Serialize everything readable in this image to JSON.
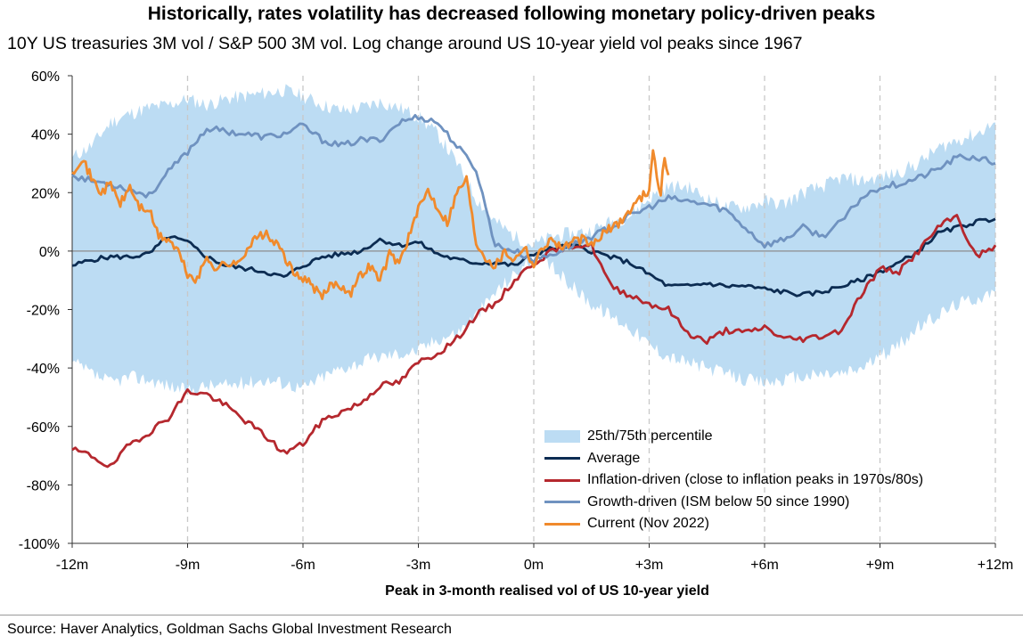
{
  "chart_data": {
    "type": "line",
    "title": "Historically, rates volatility has decreased following monetary policy-driven peaks",
    "subtitle": "10Y US treasuries 3M vol / S&P 500 3M vol. Log change around US 10-year yield vol peaks since 1967",
    "xlabel": "Peak in 3-month realised vol of US 10-year yield",
    "ylabel": "",
    "xlim": [
      -12,
      12
    ],
    "ylim": [
      -100,
      60
    ],
    "x_ticks": [
      -12,
      -9,
      -6,
      -3,
      0,
      3,
      6,
      9,
      12
    ],
    "x_tick_labels": [
      "-12m",
      "-9m",
      "-6m",
      "-3m",
      "0m",
      "+3m",
      "+6m",
      "+9m",
      "+12m"
    ],
    "y_ticks": [
      -100,
      -80,
      -60,
      -40,
      -20,
      0,
      20,
      40,
      60
    ],
    "y_tick_labels": [
      "-100%",
      "-80%",
      "-60%",
      "-40%",
      "-20%",
      "0%",
      "20%",
      "40%",
      "60%"
    ],
    "vertical_gridlines": "dashed at every 3 months",
    "zero_line": true,
    "legend_position": "bottom-right",
    "band": {
      "name": "25th/75th percentile",
      "color": "#bcdcf3",
      "x": [
        -12,
        -11.5,
        -11,
        -10.5,
        -10,
        -9.5,
        -9,
        -8.5,
        -8,
        -7.5,
        -7,
        -6.5,
        -6,
        -5.5,
        -5,
        -4.5,
        -4,
        -3.5,
        -3,
        -2.5,
        -2,
        -1.5,
        -1,
        -0.5,
        0,
        0.5,
        1,
        1.5,
        2,
        2.5,
        3,
        3.5,
        4,
        4.5,
        5,
        5.5,
        6,
        6.5,
        7,
        7.5,
        8,
        8.5,
        9,
        9.5,
        10,
        10.5,
        11,
        11.5,
        12
      ],
      "upper": [
        32,
        36,
        44,
        47,
        49,
        50,
        52,
        50,
        52,
        53,
        54,
        55,
        53,
        50,
        48,
        49,
        51,
        49,
        46,
        40,
        30,
        18,
        10,
        5,
        2,
        5,
        6,
        7,
        10,
        12,
        18,
        22,
        22,
        18,
        15,
        15,
        17,
        16,
        20,
        22,
        25,
        24,
        25,
        27,
        30,
        35,
        38,
        40,
        44
      ],
      "lower": [
        -38,
        -42,
        -45,
        -43,
        -44,
        -46,
        -48,
        -46,
        -46,
        -45,
        -44,
        -45,
        -47,
        -43,
        -40,
        -38,
        -36,
        -35,
        -34,
        -30,
        -28,
        -22,
        -14,
        -8,
        -2,
        -6,
        -12,
        -18,
        -22,
        -26,
        -32,
        -36,
        -38,
        -40,
        -42,
        -44,
        -45,
        -44,
        -43,
        -42,
        -42,
        -40,
        -36,
        -32,
        -26,
        -22,
        -18,
        -16,
        -14
      ]
    },
    "series": [
      {
        "name": "Average",
        "color": "#0c2c52",
        "x": [
          -12,
          -11.5,
          -11,
          -10.5,
          -10,
          -9.5,
          -9,
          -8.5,
          -8,
          -7.5,
          -7,
          -6.5,
          -6,
          -5.5,
          -5,
          -4.5,
          -4,
          -3.5,
          -3,
          -2.5,
          -2,
          -1.5,
          -1,
          -0.5,
          0,
          0.5,
          1,
          1.5,
          2,
          2.5,
          3,
          3.5,
          4,
          4.5,
          5,
          5.5,
          6,
          6.5,
          7,
          7.5,
          8,
          8.5,
          9,
          9.5,
          10,
          10.5,
          11,
          11.5,
          12
        ],
        "values": [
          -5,
          -3,
          -2,
          -2,
          -1,
          5,
          3,
          -2,
          -5,
          -6,
          -7,
          -9,
          -5,
          -2,
          -1,
          0,
          4,
          2,
          3,
          -1,
          -3,
          -4,
          -4,
          -5,
          -1,
          1,
          2,
          0,
          -2,
          -4,
          -8,
          -12,
          -12,
          -11,
          -12,
          -12,
          -13,
          -14,
          -15,
          -14,
          -12,
          -10,
          -7,
          -4,
          0,
          6,
          8,
          10,
          11
        ]
      },
      {
        "name": "Inflation-driven (close to inflation peaks in 1970s/80s)",
        "color": "#b5282e",
        "x": [
          -12,
          -11.5,
          -11,
          -10.5,
          -10,
          -9.5,
          -9,
          -8.5,
          -8,
          -7.5,
          -7,
          -6.5,
          -6,
          -5.5,
          -5,
          -4.5,
          -4,
          -3.5,
          -3,
          -2.5,
          -2,
          -1.5,
          -1,
          -0.5,
          0,
          0.5,
          1,
          1.5,
          2,
          2.5,
          3,
          3.5,
          4,
          4.5,
          5,
          5.5,
          6,
          6.5,
          7,
          7.5,
          8,
          8.5,
          9,
          9.5,
          10,
          10.5,
          11,
          11.5,
          12
        ],
        "values": [
          -68,
          -70,
          -74,
          -66,
          -62,
          -57,
          -48,
          -49,
          -53,
          -58,
          -63,
          -69,
          -66,
          -58,
          -55,
          -52,
          -46,
          -45,
          -38,
          -35,
          -30,
          -22,
          -18,
          -10,
          -4,
          0,
          2,
          2,
          -12,
          -15,
          -18,
          -20,
          -28,
          -31,
          -27,
          -28,
          -26,
          -30,
          -30,
          -29,
          -27,
          -15,
          -6,
          -7,
          0,
          8,
          12,
          -2,
          2
        ]
      },
      {
        "name": "Growth-driven (ISM below 50 since 1990)",
        "color": "#6f92c0",
        "x": [
          -12,
          -11.5,
          -11,
          -10.5,
          -10,
          -9.5,
          -9,
          -8.5,
          -8,
          -7.5,
          -7,
          -6.5,
          -6,
          -5.5,
          -5,
          -4.5,
          -4,
          -3.5,
          -3,
          -2.5,
          -2,
          -1.5,
          -1,
          -0.5,
          0,
          0.5,
          1,
          1.5,
          2,
          2.5,
          3,
          3.5,
          4,
          4.5,
          5,
          5.5,
          6,
          6.5,
          7,
          7.5,
          8,
          8.5,
          9,
          9.5,
          10,
          10.5,
          11,
          11.5,
          12
        ],
        "values": [
          26,
          24,
          23,
          21,
          19,
          27,
          34,
          42,
          41,
          40,
          39,
          40,
          43,
          38,
          36,
          38,
          38,
          44,
          46,
          44,
          36,
          28,
          2,
          0,
          -3,
          -1,
          2,
          5,
          8,
          12,
          15,
          18,
          17,
          16,
          14,
          8,
          2,
          4,
          8,
          5,
          10,
          18,
          22,
          23,
          25,
          28,
          32,
          32,
          30
        ]
      },
      {
        "name": "Current (Nov 2022)",
        "color": "#f08a2c",
        "x": [
          -12,
          -11.75,
          -11.5,
          -11.25,
          -11,
          -10.75,
          -10.5,
          -10.25,
          -10,
          -9.75,
          -9.5,
          -9.25,
          -9,
          -8.75,
          -8.5,
          -8.25,
          -8,
          -7.75,
          -7.5,
          -7.25,
          -7,
          -6.75,
          -6.5,
          -6.25,
          -6,
          -5.75,
          -5.5,
          -5.25,
          -5,
          -4.75,
          -4.5,
          -4.25,
          -4,
          -3.75,
          -3.5,
          -3.25,
          -3,
          -2.75,
          -2.5,
          -2.25,
          -2,
          -1.75,
          -1.5,
          -1.25,
          -1,
          -0.75,
          -0.5,
          -0.25,
          0,
          0.25,
          0.5,
          0.75,
          1,
          1.25,
          1.5,
          1.75,
          2,
          2.25,
          2.5,
          2.75,
          3,
          3.1,
          3.2,
          3.3,
          3.4,
          3.5
        ],
        "values": [
          27,
          32,
          25,
          20,
          23,
          16,
          22,
          15,
          14,
          5,
          4,
          0,
          -8,
          -10,
          -2,
          -6,
          -4,
          -5,
          0,
          4,
          6,
          3,
          -1,
          -8,
          -9,
          -12,
          -16,
          -11,
          -12,
          -14,
          -8,
          -5,
          -10,
          -1,
          -4,
          5,
          14,
          21,
          15,
          10,
          20,
          25,
          3,
          -2,
          -5,
          0,
          -3,
          2,
          -5,
          2,
          4,
          1,
          3,
          4,
          2,
          5,
          8,
          10,
          14,
          18,
          21,
          36,
          24,
          20,
          32,
          26
        ]
      }
    ]
  },
  "source": "Source: Haver Analytics, Goldman Sachs Global Investment Research"
}
